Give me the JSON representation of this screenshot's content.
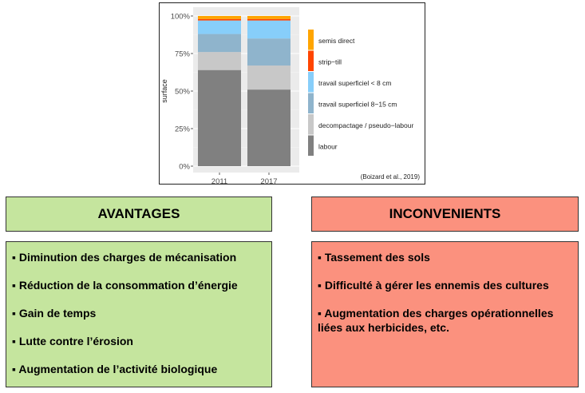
{
  "chart_data": {
    "type": "bar",
    "stacked": true,
    "categories": [
      "2011",
      "2017"
    ],
    "ylabel": "surface",
    "yticks": [
      "0%",
      "25%",
      "50%",
      "75%",
      "100%"
    ],
    "ylim": [
      0,
      100
    ],
    "legend_position": "right",
    "source": "(Boizard et al., 2019)",
    "series": [
      {
        "name": "labour",
        "color": "#808080",
        "values": [
          64,
          51
        ]
      },
      {
        "name": "decompactage / pseudo−labour",
        "color": "#c8c8c8",
        "values": [
          12,
          16
        ]
      },
      {
        "name": "travail superficiel 8−15 cm",
        "color": "#8fb4cc",
        "values": [
          12,
          18
        ]
      },
      {
        "name": "travail superficiel < 8 cm",
        "color": "#87cefa",
        "values": [
          9,
          12
        ]
      },
      {
        "name": "strip−till",
        "color": "#ff4500",
        "values": [
          1,
          1
        ]
      },
      {
        "name": "semis direct",
        "color": "#ffa500",
        "values": [
          2,
          2
        ]
      }
    ]
  },
  "advantages": {
    "title": "AVANTAGES",
    "color": "#c5e59e",
    "items": [
      "▪ Diminution des charges de mécanisation",
      "▪ Réduction de la consommation d’énergie",
      "▪ Gain de temps",
      "▪ Lutte contre l’érosion",
      "▪ Augmentation de l’activité biologique"
    ]
  },
  "inconvenients": {
    "title": "INCONVENIENTS",
    "color": "#fb917e",
    "items": [
      "▪ Tassement des sols",
      "▪ Difficulté à gérer les ennemis des cultures",
      "▪ Augmentation des charges opérationnelles liées aux herbicides, etc."
    ]
  }
}
